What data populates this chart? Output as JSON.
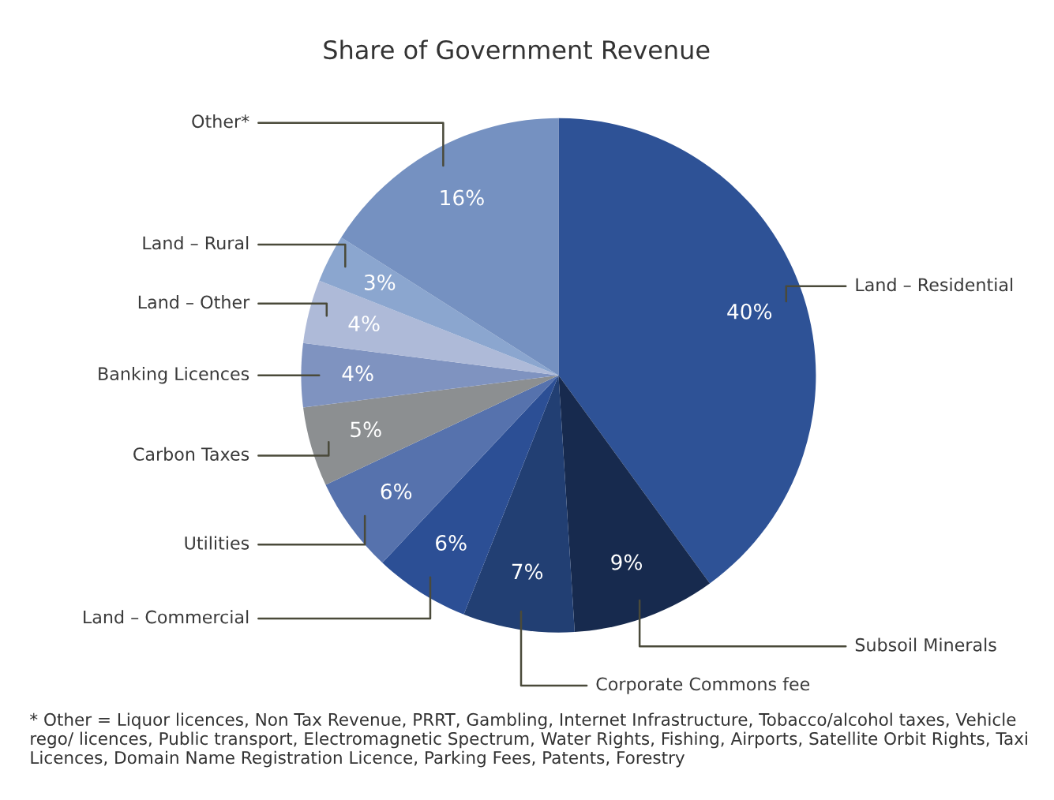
{
  "chart_data": {
    "type": "pie",
    "title": "Share of Government Revenue",
    "categories": [
      "Land – Residential",
      "Subsoil Minerals",
      "Corporate Commons fee",
      "Land – Commercial",
      "Utilities",
      "Carbon Taxes",
      "Banking Licences",
      "Land – Other",
      "Land – Rural",
      "Other*"
    ],
    "values": [
      40,
      9,
      7,
      6,
      6,
      5,
      4,
      4,
      3,
      16
    ],
    "value_labels": [
      "40%",
      "9%",
      "7%",
      "6%",
      "6%",
      "5%",
      "4%",
      "4%",
      "3%",
      "16%"
    ],
    "colors": [
      "#2e5296",
      "#172a4e",
      "#223f73",
      "#2c4f95",
      "#5672ad",
      "#8c8f91",
      "#7f93c0",
      "#aebad8",
      "#8ba6cf",
      "#7591c1"
    ],
    "annotations": [
      "* Other = Liquor licences, Non Tax Revenue, PRRT, Gambling, Internet Infrastructure, Tobacco/alcohol taxes, Vehicle rego/ licences, Public transport, Electromagnetic Spectrum, Water Rights, Fishing, Airports, Satellite Orbit Rights, Taxi Licences, Domain Name Registration Licence, Parking Fees, Patents, Forestry"
    ]
  }
}
